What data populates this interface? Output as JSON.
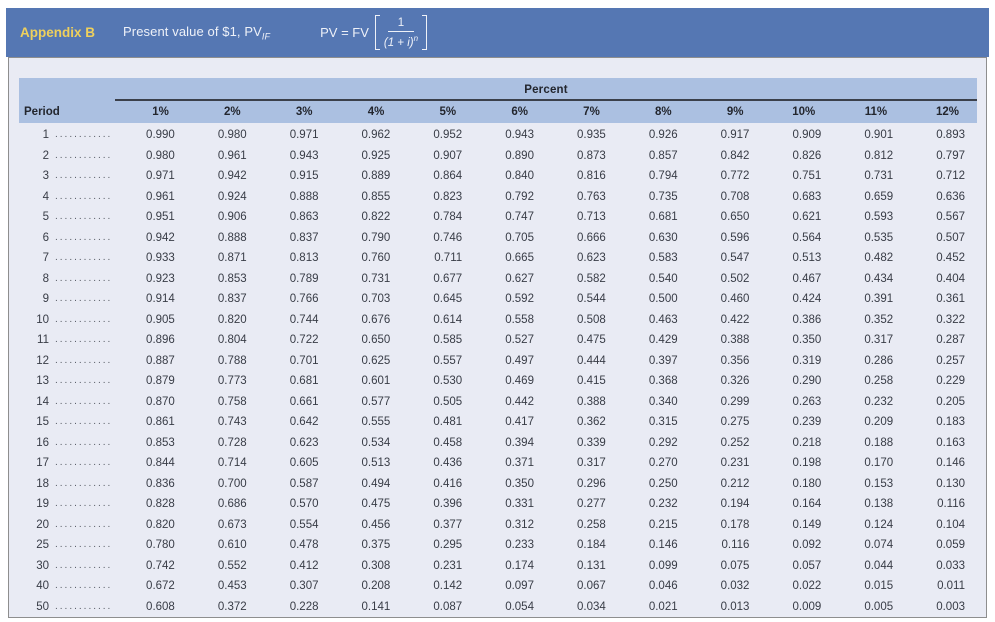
{
  "banner": {
    "appendix": "Appendix B",
    "title": "Present value of $1, PV",
    "title_subscript": "IF",
    "formula_lhs": "PV = FV",
    "formula_numerator": "1",
    "formula_denominator": "(1 + i)",
    "formula_exponent": "n"
  },
  "table": {
    "group_header": "Percent",
    "period_header": "Period",
    "leader_dots": "......................................",
    "columns": [
      "1%",
      "2%",
      "3%",
      "4%",
      "5%",
      "6%",
      "7%",
      "8%",
      "9%",
      "10%",
      "11%",
      "12%"
    ],
    "rows": [
      {
        "period": "1",
        "values": [
          "0.990",
          "0.980",
          "0.971",
          "0.962",
          "0.952",
          "0.943",
          "0.935",
          "0.926",
          "0.917",
          "0.909",
          "0.901",
          "0.893"
        ]
      },
      {
        "period": "2",
        "values": [
          "0.980",
          "0.961",
          "0.943",
          "0.925",
          "0.907",
          "0.890",
          "0.873",
          "0.857",
          "0.842",
          "0.826",
          "0.812",
          "0.797"
        ]
      },
      {
        "period": "3",
        "values": [
          "0.971",
          "0.942",
          "0.915",
          "0.889",
          "0.864",
          "0.840",
          "0.816",
          "0.794",
          "0.772",
          "0.751",
          "0.731",
          "0.712"
        ]
      },
      {
        "period": "4",
        "values": [
          "0.961",
          "0.924",
          "0.888",
          "0.855",
          "0.823",
          "0.792",
          "0.763",
          "0.735",
          "0.708",
          "0.683",
          "0.659",
          "0.636"
        ]
      },
      {
        "period": "5",
        "values": [
          "0.951",
          "0.906",
          "0.863",
          "0.822",
          "0.784",
          "0.747",
          "0.713",
          "0.681",
          "0.650",
          "0.621",
          "0.593",
          "0.567"
        ]
      },
      {
        "period": "6",
        "values": [
          "0.942",
          "0.888",
          "0.837",
          "0.790",
          "0.746",
          "0.705",
          "0.666",
          "0.630",
          "0.596",
          "0.564",
          "0.535",
          "0.507"
        ]
      },
      {
        "period": "7",
        "values": [
          "0.933",
          "0.871",
          "0.813",
          "0.760",
          "0.711",
          "0.665",
          "0.623",
          "0.583",
          "0.547",
          "0.513",
          "0.482",
          "0.452"
        ]
      },
      {
        "period": "8",
        "values": [
          "0.923",
          "0.853",
          "0.789",
          "0.731",
          "0.677",
          "0.627",
          "0.582",
          "0.540",
          "0.502",
          "0.467",
          "0.434",
          "0.404"
        ]
      },
      {
        "period": "9",
        "values": [
          "0.914",
          "0.837",
          "0.766",
          "0.703",
          "0.645",
          "0.592",
          "0.544",
          "0.500",
          "0.460",
          "0.424",
          "0.391",
          "0.361"
        ]
      },
      {
        "period": "10",
        "values": [
          "0.905",
          "0.820",
          "0.744",
          "0.676",
          "0.614",
          "0.558",
          "0.508",
          "0.463",
          "0.422",
          "0.386",
          "0.352",
          "0.322"
        ]
      },
      {
        "period": "11",
        "values": [
          "0.896",
          "0.804",
          "0.722",
          "0.650",
          "0.585",
          "0.527",
          "0.475",
          "0.429",
          "0.388",
          "0.350",
          "0.317",
          "0.287"
        ]
      },
      {
        "period": "12",
        "values": [
          "0.887",
          "0.788",
          "0.701",
          "0.625",
          "0.557",
          "0.497",
          "0.444",
          "0.397",
          "0.356",
          "0.319",
          "0.286",
          "0.257"
        ]
      },
      {
        "period": "13",
        "values": [
          "0.879",
          "0.773",
          "0.681",
          "0.601",
          "0.530",
          "0.469",
          "0.415",
          "0.368",
          "0.326",
          "0.290",
          "0.258",
          "0.229"
        ]
      },
      {
        "period": "14",
        "values": [
          "0.870",
          "0.758",
          "0.661",
          "0.577",
          "0.505",
          "0.442",
          "0.388",
          "0.340",
          "0.299",
          "0.263",
          "0.232",
          "0.205"
        ]
      },
      {
        "period": "15",
        "values": [
          "0.861",
          "0.743",
          "0.642",
          "0.555",
          "0.481",
          "0.417",
          "0.362",
          "0.315",
          "0.275",
          "0.239",
          "0.209",
          "0.183"
        ]
      },
      {
        "period": "16",
        "values": [
          "0.853",
          "0.728",
          "0.623",
          "0.534",
          "0.458",
          "0.394",
          "0.339",
          "0.292",
          "0.252",
          "0.218",
          "0.188",
          "0.163"
        ]
      },
      {
        "period": "17",
        "values": [
          "0.844",
          "0.714",
          "0.605",
          "0.513",
          "0.436",
          "0.371",
          "0.317",
          "0.270",
          "0.231",
          "0.198",
          "0.170",
          "0.146"
        ]
      },
      {
        "period": "18",
        "values": [
          "0.836",
          "0.700",
          "0.587",
          "0.494",
          "0.416",
          "0.350",
          "0.296",
          "0.250",
          "0.212",
          "0.180",
          "0.153",
          "0.130"
        ]
      },
      {
        "period": "19",
        "values": [
          "0.828",
          "0.686",
          "0.570",
          "0.475",
          "0.396",
          "0.331",
          "0.277",
          "0.232",
          "0.194",
          "0.164",
          "0.138",
          "0.116"
        ]
      },
      {
        "period": "20",
        "values": [
          "0.820",
          "0.673",
          "0.554",
          "0.456",
          "0.377",
          "0.312",
          "0.258",
          "0.215",
          "0.178",
          "0.149",
          "0.124",
          "0.104"
        ]
      },
      {
        "period": "25",
        "values": [
          "0.780",
          "0.610",
          "0.478",
          "0.375",
          "0.295",
          "0.233",
          "0.184",
          "0.146",
          "0.116",
          "0.092",
          "0.074",
          "0.059"
        ]
      },
      {
        "period": "30",
        "values": [
          "0.742",
          "0.552",
          "0.412",
          "0.308",
          "0.231",
          "0.174",
          "0.131",
          "0.099",
          "0.075",
          "0.057",
          "0.044",
          "0.033"
        ]
      },
      {
        "period": "40",
        "values": [
          "0.672",
          "0.453",
          "0.307",
          "0.208",
          "0.142",
          "0.097",
          "0.067",
          "0.046",
          "0.032",
          "0.022",
          "0.015",
          "0.011"
        ]
      },
      {
        "period": "50",
        "values": [
          "0.608",
          "0.372",
          "0.228",
          "0.141",
          "0.087",
          "0.054",
          "0.034",
          "0.021",
          "0.013",
          "0.009",
          "0.005",
          "0.003"
        ]
      }
    ]
  },
  "colors": {
    "banner_bg": "#5577b3",
    "appendix_accent": "#efd05c",
    "banner_text": "#eef1f8",
    "panel_bg": "#e9ebf4",
    "panel_border": "#8e8e8e",
    "band_bg": "#abc0e1",
    "header_text": "#23262e",
    "data_text": "#383c46",
    "rule_color": "#3b404b"
  }
}
